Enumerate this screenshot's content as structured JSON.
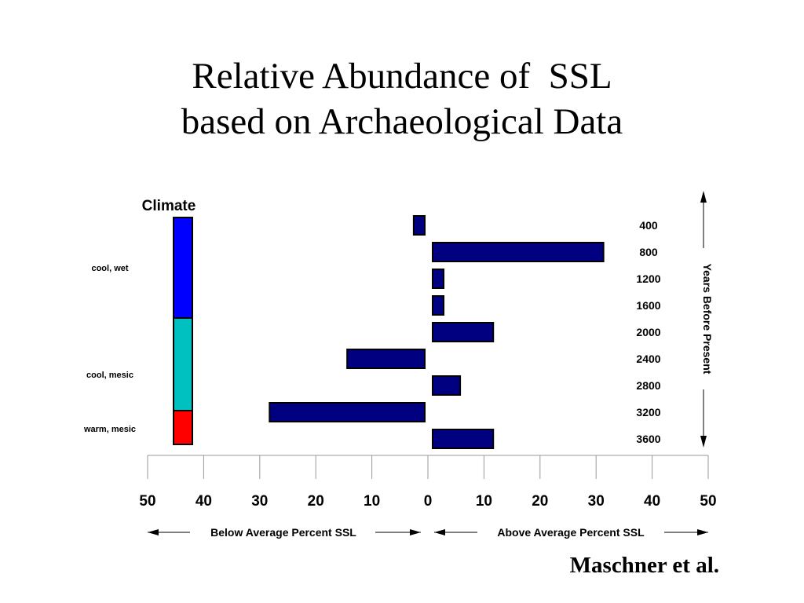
{
  "title": {
    "line1": "Relative Abundance of  SSL",
    "line2": "based on Archaeological Data"
  },
  "credit": "Maschner et al.",
  "colors": {
    "bar_fill": "#000080",
    "cool_wet": "#0000ff",
    "cool_mesic": "#00c0c0",
    "warm_mesic": "#ff0000"
  },
  "chart_data": {
    "type": "bar",
    "orientation": "horizontal",
    "categories": [
      "400",
      "800",
      "1200",
      "1600",
      "2000",
      "2400",
      "2800",
      "3200",
      "3600"
    ],
    "values": [
      -2,
      31,
      2,
      2,
      11,
      -14,
      5,
      -28,
      11
    ],
    "xlim": [
      -50,
      50
    ],
    "xticks": [
      -50,
      -40,
      -30,
      -20,
      -10,
      0,
      10,
      20,
      30,
      40,
      50
    ],
    "xtick_labels": [
      "50",
      "40",
      "30",
      "20",
      "10",
      "0",
      "10",
      "20",
      "30",
      "40",
      "50"
    ],
    "xlabel_left": "Below Average Percent SSL",
    "xlabel_right": "Above Average Percent SSL",
    "ylabel": "Years Before Present",
    "climate": {
      "title": "Climate",
      "bands": [
        {
          "label": "cool, wet",
          "from": "400",
          "to": "1600",
          "color": "#0000ff"
        },
        {
          "label": "cool, mesic",
          "from": "2000",
          "to": "2800",
          "color": "#00c0c0"
        },
        {
          "label": "warm, mesic",
          "from": "3200",
          "to": "3600",
          "color": "#ff0000"
        }
      ]
    },
    "grid": false,
    "legend": "none"
  }
}
